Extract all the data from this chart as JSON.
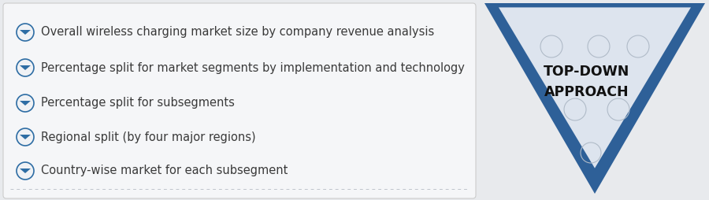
{
  "background_color": "#e8eaed",
  "panel_bg": "#f5f6f8",
  "bullet_color": "#2e6da4",
  "bullet_items": [
    "Overall wireless charging market size by company revenue analysis",
    "Percentage split for market segments by implementation and technology",
    "Percentage split for subsegments",
    "Regional split (by four major regions)",
    "Country-wise market for each subsegment"
  ],
  "text_color": "#3a3a3a",
  "text_fontsize": 10.5,
  "triangle_outer_color": "#2e6098",
  "triangle_inner_color": "#dde4ee",
  "label_text": "TOP-DOWN\nAPPROACH",
  "label_fontsize": 12.5,
  "label_color": "#111111",
  "border_color": "#cccccc",
  "line_color": "#c0c5cc",
  "right_bg": "#3a6898"
}
